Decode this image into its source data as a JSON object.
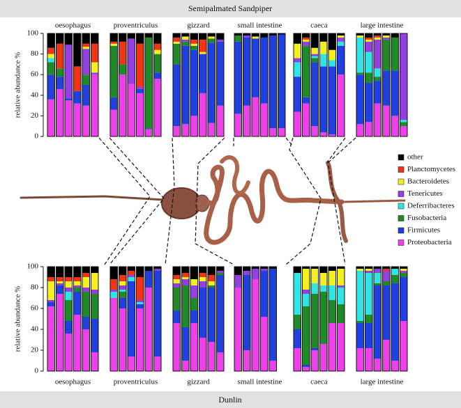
{
  "chart_data": {
    "type": "bar",
    "stacked": true,
    "ylabel": "relative abundance %",
    "ylim": [
      0,
      100
    ],
    "yticks": [
      0,
      20,
      40,
      60,
      80,
      100
    ],
    "series": [
      {
        "name": "other",
        "color": "#000000"
      },
      {
        "name": "Planctomycetes",
        "color": "#f03418"
      },
      {
        "name": "Bacteroidetes",
        "color": "#f4f020"
      },
      {
        "name": "Tenericutes",
        "color": "#9440e0"
      },
      {
        "name": "Deferribacteres",
        "color": "#30e4e4"
      },
      {
        "name": "Fusobacteria",
        "color": "#208a28"
      },
      {
        "name": "Firmicutes",
        "color": "#2040e0"
      },
      {
        "name": "Proteobacteria",
        "color": "#ec40e8"
      }
    ],
    "groups": [
      {
        "title": "Semipalmated Sandpiper",
        "panels": [
          {
            "title": "oesophagus",
            "bars": [
              [
                14,
                6,
                4,
                0,
                4,
                12,
                24,
                36
              ],
              [
                10,
                24,
                0,
                0,
                0,
                8,
                12,
                46
              ],
              [
                11,
                0,
                0,
                52,
                0,
                0,
                2,
                35
              ],
              [
                32,
                24,
                0,
                0,
                0,
                0,
                12,
                32
              ],
              [
                10,
                3,
                2,
                25,
                0,
                10,
                20,
                30
              ],
              [
                10,
                18,
                10,
                2,
                0,
                0,
                0,
                60
              ]
            ]
          },
          {
            "title": "proventriculus",
            "bars": [
              [
                8,
                2,
                2,
                0,
                0,
                50,
                12,
                26
              ],
              [
                8,
                22,
                0,
                0,
                0,
                10,
                0,
                60
              ],
              [
                5,
                0,
                0,
                44,
                0,
                0,
                0,
                51
              ],
              [
                10,
                42,
                0,
                2,
                0,
                0,
                4,
                42
              ],
              [
                4,
                0,
                0,
                0,
                0,
                88,
                1,
                7
              ],
              [
                10,
                6,
                4,
                0,
                0,
                18,
                6,
                56
              ]
            ]
          },
          {
            "title": "gizzard",
            "bars": [
              [
                4,
                4,
                2,
                0,
                0,
                20,
                60,
                10
              ],
              [
                3,
                0,
                3,
                2,
                0,
                4,
                76,
                12
              ],
              [
                6,
                4,
                2,
                0,
                0,
                4,
                64,
                20
              ],
              [
                6,
                12,
                2,
                0,
                0,
                0,
                38,
                42
              ],
              [
                3,
                0,
                2,
                0,
                0,
                4,
                78,
                13
              ],
              [
                6,
                0,
                0,
                2,
                0,
                0,
                62,
                30
              ]
            ]
          },
          {
            "title": "small intestine",
            "bars": [
              [
                2,
                0,
                0,
                0,
                0,
                6,
                70,
                22
              ],
              [
                2,
                0,
                0,
                2,
                0,
                0,
                66,
                30
              ],
              [
                3,
                0,
                2,
                0,
                0,
                0,
                57,
                38
              ],
              [
                4,
                0,
                0,
                0,
                0,
                0,
                64,
                32
              ],
              [
                2,
                0,
                0,
                0,
                0,
                0,
                90,
                8
              ],
              [
                1,
                0,
                0,
                0,
                0,
                0,
                91,
                8
              ]
            ]
          },
          {
            "title": "caeca",
            "bars": [
              [
                10,
                0,
                14,
                4,
                14,
                0,
                34,
                24
              ],
              [
                4,
                2,
                2,
                4,
                0,
                50,
                6,
                32
              ],
              [
                14,
                0,
                6,
                2,
                2,
                4,
                62,
                10
              ],
              [
                8,
                0,
                12,
                0,
                12,
                0,
                64,
                4
              ],
              [
                16,
                0,
                10,
                0,
                6,
                0,
                66,
                2
              ],
              [
                2,
                0,
                2,
                4,
                4,
                0,
                28,
                60
              ]
            ]
          },
          {
            "title": "large intestine",
            "bars": [
              [
                2,
                0,
                2,
                0,
                34,
                2,
                48,
                12
              ],
              [
                4,
                2,
                2,
                10,
                20,
                10,
                38,
                14
              ],
              [
                2,
                2,
                2,
                28,
                8,
                4,
                22,
                32
              ],
              [
                2,
                0,
                2,
                2,
                0,
                30,
                34,
                30
              ],
              [
                4,
                0,
                0,
                0,
                0,
                32,
                44,
                20
              ],
              [
                0,
                0,
                0,
                84,
                2,
                4,
                0,
                10
              ]
            ]
          }
        ]
      },
      {
        "title": "Dunlin",
        "panels": [
          {
            "title": "oesophagus",
            "bars": [
              [
                10,
                4,
                18,
                2,
                0,
                0,
                4,
                62
              ],
              [
                10,
                4,
                2,
                2,
                0,
                0,
                8,
                74
              ],
              [
                10,
                4,
                6,
                4,
                8,
                20,
                12,
                36
              ],
              [
                10,
                4,
                4,
                2,
                0,
                4,
                22,
                54
              ],
              [
                6,
                4,
                10,
                4,
                0,
                24,
                12,
                40
              ],
              [
                6,
                0,
                16,
                4,
                0,
                24,
                32,
                18
              ]
            ]
          },
          {
            "title": "proventriculus",
            "bars": [
              [
                12,
                10,
                0,
                2,
                6,
                0,
                0,
                70
              ],
              [
                8,
                6,
                4,
                4,
                2,
                6,
                10,
                60
              ],
              [
                4,
                4,
                0,
                2,
                4,
                0,
                72,
                14
              ],
              [
                10,
                22,
                0,
                2,
                2,
                0,
                4,
                60
              ],
              [
                4,
                0,
                0,
                0,
                0,
                0,
                16,
                80
              ],
              [
                2,
                0,
                0,
                2,
                0,
                0,
                82,
                14
              ]
            ]
          },
          {
            "title": "gizzard",
            "bars": [
              [
                8,
                4,
                4,
                4,
                0,
                22,
                12,
                46
              ],
              [
                6,
                4,
                2,
                6,
                0,
                40,
                32,
                10
              ],
              [
                12,
                0,
                6,
                12,
                0,
                12,
                12,
                46
              ],
              [
                6,
                4,
                4,
                6,
                0,
                0,
                48,
                32
              ],
              [
                8,
                6,
                4,
                0,
                0,
                2,
                52,
                28
              ],
              [
                4,
                0,
                0,
                2,
                0,
                2,
                74,
                18
              ]
            ]
          },
          {
            "title": "small intestine",
            "bars": [
              [
                8,
                0,
                0,
                12,
                0,
                0,
                0,
                80
              ],
              [
                4,
                0,
                0,
                4,
                0,
                0,
                72,
                20
              ],
              [
                2,
                0,
                0,
                10,
                0,
                0,
                0,
                88
              ],
              [
                2,
                0,
                0,
                2,
                0,
                0,
                44,
                52
              ],
              [
                2,
                0,
                0,
                0,
                0,
                0,
                88,
                10
              ]
            ]
          },
          {
            "title": "caeca",
            "bars": [
              [
                6,
                0,
                0,
                0,
                40,
                14,
                18,
                22
              ],
              [
                2,
                0,
                20,
                4,
                12,
                56,
                2,
                4
              ],
              [
                2,
                0,
                14,
                0,
                10,
                52,
                2,
                20
              ],
              [
                6,
                0,
                12,
                0,
                6,
                50,
                0,
                26
              ],
              [
                4,
                0,
                14,
                0,
                14,
                22,
                0,
                46
              ],
              [
                2,
                0,
                16,
                2,
                16,
                18,
                0,
                46
              ]
            ]
          },
          {
            "title": "large intestine",
            "bars": [
              [
                2,
                0,
                2,
                0,
                48,
                2,
                24,
                22
              ],
              [
                2,
                0,
                2,
                2,
                40,
                8,
                24,
                22
              ],
              [
                2,
                0,
                0,
                4,
                10,
                2,
                70,
                12
              ],
              [
                2,
                2,
                0,
                10,
                0,
                4,
                52,
                30
              ],
              [
                2,
                0,
                0,
                0,
                6,
                8,
                74,
                10
              ],
              [
                2,
                0,
                2,
                2,
                0,
                4,
                42,
                48
              ]
            ]
          }
        ]
      }
    ]
  }
}
